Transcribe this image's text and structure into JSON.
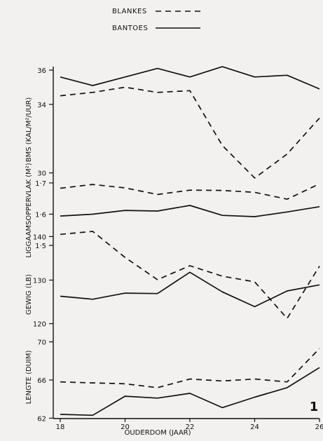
{
  "chart_data": {
    "type": "line",
    "legend": [
      {
        "label": "BLANKES",
        "style": "dashed"
      },
      {
        "label": "BANTOES",
        "style": "solid"
      }
    ],
    "legend_position": "top-center",
    "x": [
      18,
      19,
      20,
      21,
      22,
      23,
      24,
      25,
      26
    ],
    "xlabel": "OUDERDOM (JAAR)",
    "xticks": [
      "18",
      "20",
      "22",
      "24",
      "26"
    ],
    "xlim": [
      18,
      26
    ],
    "figure_label": "1",
    "grid": false,
    "panels": [
      {
        "ylabel": "BMS (KAL/M²/UUR)",
        "yticks": [
          "30",
          "34",
          "36"
        ],
        "ylim": [
          29,
          36
        ],
        "series": [
          {
            "name": "BLANKES",
            "values": [
              34.5,
              34.7,
              35.0,
              34.7,
              34.8,
              31.6,
              29.7,
              31.1,
              33.2
            ]
          },
          {
            "name": "BANTOES",
            "values": [
              35.6,
              35.1,
              35.6,
              36.1,
              35.6,
              36.2,
              35.6,
              35.7,
              34.9
            ]
          }
        ]
      },
      {
        "ylabel": "LIGGAAMSOPPERVLAK (M²)",
        "yticks": [
          "1·5",
          "1·6",
          "1·7"
        ],
        "ylim": [
          1.5,
          1.72
        ],
        "series": [
          {
            "name": "BLANKES",
            "values": [
              1.683,
              1.695,
              1.684,
              1.663,
              1.677,
              1.676,
              1.67,
              1.648,
              1.697
            ]
          },
          {
            "name": "BANTOES",
            "values": [
              1.594,
              1.6,
              1.612,
              1.61,
              1.628,
              1.596,
              1.592,
              1.607,
              1.624
            ]
          }
        ]
      },
      {
        "ylabel": "GEWIG (LB)",
        "yticks": [
          "120",
          "130",
          "140"
        ],
        "ylim": [
          118,
          142
        ],
        "series": [
          {
            "name": "BLANKES",
            "values": [
              140.5,
              141.2,
              135.2,
              130.1,
              133.3,
              130.9,
              129.6,
              121.2,
              133.2
            ]
          },
          {
            "name": "BANTOES",
            "values": [
              126.3,
              125.6,
              127.0,
              126.9,
              131.8,
              127.3,
              123.9,
              127.5,
              128.9
            ]
          }
        ]
      },
      {
        "ylabel": "LENGTE (DUIM)",
        "yticks": [
          "62",
          "66",
          "70"
        ],
        "ylim": [
          61,
          71
        ],
        "series": [
          {
            "name": "BLANKES",
            "values": [
              65.8,
              65.7,
              65.6,
              65.2,
              66.1,
              65.9,
              66.1,
              65.8,
              69.3
            ]
          },
          {
            "name": "BANTOES",
            "values": [
              62.4,
              62.3,
              64.3,
              64.1,
              64.6,
              63.1,
              64.2,
              65.2,
              67.3
            ]
          }
        ]
      }
    ]
  }
}
